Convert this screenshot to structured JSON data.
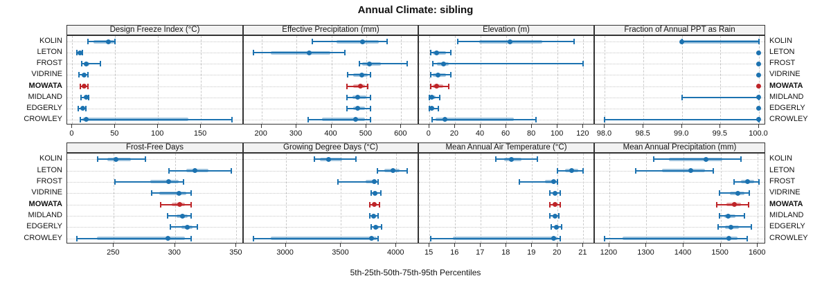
{
  "title": "Annual Climate: sibling",
  "footer_label": "5th-25th-50th-75th-95th Percentiles",
  "colors": {
    "series_blue": "#1C72B0",
    "highlight_red": "#BE2428",
    "strip_bg": "#F2F2F2",
    "panel_border": "#333333",
    "grid": "#C9C9C9"
  },
  "chart_data": {
    "type": "dot-whisker",
    "percentiles": [
      5,
      25,
      50,
      75,
      95
    ],
    "categories": [
      "KOLIN",
      "LETON",
      "FROST",
      "VIDRINE",
      "MOWATA",
      "MIDLAND",
      "EDGERLY",
      "CROWLEY"
    ],
    "highlight_category": "MOWATA",
    "legend_position": "none",
    "grid": "on",
    "panels": [
      {
        "title": "Design Freeze Index (°C)",
        "ticks": [
          0,
          50,
          100,
          150
        ],
        "tick_labels": [
          "0",
          "50",
          "100",
          "150"
        ],
        "xlim": [
          -6,
          200
        ],
        "values": {
          "KOLIN": [
            18,
            25,
            42,
            49,
            50
          ],
          "LETON": [
            5,
            7,
            9,
            11,
            12
          ],
          "FROST": [
            11,
            13,
            16,
            20,
            33
          ],
          "VIDRINE": [
            8,
            11,
            14,
            16,
            18
          ],
          "MOWATA": [
            9,
            12,
            14,
            16,
            18
          ],
          "MIDLAND": [
            10,
            13,
            16,
            17,
            19
          ],
          "EDGERLY": [
            7,
            10,
            12,
            14,
            16
          ],
          "CROWLEY": [
            9,
            12,
            16,
            135,
            186
          ]
        }
      },
      {
        "title": "Effective Precipitation (mm)",
        "ticks": [
          200,
          300,
          400,
          500,
          600
        ],
        "tick_labels": [
          "200",
          "300",
          "400",
          "500",
          "600"
        ],
        "xlim": [
          149,
          651
        ],
        "values": {
          "KOLIN": [
            345,
            415,
            490,
            535,
            560
          ],
          "LETON": [
            176,
            227,
            336,
            397,
            438
          ],
          "FROST": [
            480,
            488,
            510,
            542,
            617
          ],
          "VIDRINE": [
            446,
            462,
            488,
            505,
            513
          ],
          "MOWATA": [
            445,
            462,
            483,
            497,
            505
          ],
          "MIDLAND": [
            444,
            460,
            475,
            500,
            512
          ],
          "EDGERLY": [
            445,
            462,
            475,
            497,
            512
          ],
          "CROWLEY": [
            334,
            374,
            470,
            497,
            512
          ]
        }
      },
      {
        "title": "Elevation (m)",
        "ticks": [
          0,
          20,
          40,
          60,
          80,
          100,
          120
        ],
        "tick_labels": [
          "0",
          "20",
          "40",
          "60",
          "80",
          "100",
          "120"
        ],
        "xlim": [
          -8,
          129
        ],
        "values": {
          "KOLIN": [
            22,
            39,
            63,
            88,
            113
          ],
          "LETON": [
            1,
            3,
            6,
            13,
            17
          ],
          "FROST": [
            3,
            6,
            11,
            15,
            120
          ],
          "VIDRINE": [
            1,
            3,
            7,
            13,
            17
          ],
          "MOWATA": [
            1,
            3,
            6,
            11,
            15
          ],
          "MIDLAND": [
            0,
            1,
            2,
            5,
            8
          ],
          "EDGERLY": [
            0,
            1,
            2,
            4,
            7
          ],
          "CROWLEY": [
            2,
            5,
            12,
            66,
            83
          ]
        }
      },
      {
        "title": "Fraction of Annual PPT as Rain",
        "ticks": [
          98.0,
          98.5,
          99.0,
          99.5,
          100.0
        ],
        "tick_labels": [
          "98.0",
          "98.5",
          "99.0",
          "99.5",
          "100.0"
        ],
        "xlim": [
          97.87,
          100.09
        ],
        "values": {
          "KOLIN": [
            99.0,
            99.0,
            99.0,
            100.0,
            100.0
          ],
          "LETON": [
            100.0,
            100.0,
            100.0,
            100.0,
            100.0
          ],
          "FROST": [
            100.0,
            100.0,
            100.0,
            100.0,
            100.0
          ],
          "VIDRINE": [
            100.0,
            100.0,
            100.0,
            100.0,
            100.0
          ],
          "MOWATA": [
            100.0,
            100.0,
            100.0,
            100.0,
            100.0
          ],
          "MIDLAND": [
            99.0,
            100.0,
            100.0,
            100.0,
            100.0
          ],
          "EDGERLY": [
            100.0,
            100.0,
            100.0,
            100.0,
            100.0
          ],
          "CROWLEY": [
            98.0,
            100.0,
            100.0,
            100.0,
            100.0
          ]
        }
      },
      {
        "title": "Frost-Free Days",
        "ticks": [
          250,
          300,
          350
        ],
        "tick_labels": [
          "250",
          "300",
          "350"
        ],
        "xlim": [
          212,
          356
        ],
        "values": {
          "KOLIN": [
            237,
            245,
            252,
            264,
            276
          ],
          "LETON": [
            295,
            309,
            316,
            327,
            346
          ],
          "FROST": [
            251,
            280,
            295,
            303,
            307
          ],
          "VIDRINE": [
            281,
            287,
            303,
            309,
            313
          ],
          "MOWATA": [
            288,
            297,
            304,
            308,
            313
          ],
          "MIDLAND": [
            294,
            301,
            306,
            310,
            313
          ],
          "EDGERLY": [
            296,
            305,
            310,
            314,
            318
          ],
          "CROWLEY": [
            220,
            236,
            294,
            308,
            313
          ]
        }
      },
      {
        "title": "Growing Degree Days (°C)",
        "ticks": [
          3000,
          3500,
          4000
        ],
        "tick_labels": [
          "3000",
          "3500",
          "4000"
        ],
        "xlim": [
          2620,
          4205
        ],
        "values": {
          "KOLIN": [
            3260,
            3310,
            3385,
            3510,
            3635
          ],
          "LETON": [
            3830,
            3890,
            3970,
            4030,
            4100
          ],
          "FROST": [
            3470,
            3720,
            3800,
            3820,
            3835
          ],
          "VIDRINE": [
            3770,
            3790,
            3805,
            3830,
            3858
          ],
          "MOWATA": [
            3760,
            3785,
            3800,
            3820,
            3845
          ],
          "MIDLAND": [
            3760,
            3780,
            3795,
            3815,
            3835
          ],
          "EDGERLY": [
            3770,
            3795,
            3815,
            3840,
            3865
          ],
          "CROWLEY": [
            2710,
            2865,
            3775,
            3820,
            3835
          ]
        }
      },
      {
        "title": "Mean Annual Air Temperature (°C)",
        "ticks": [
          15,
          16,
          17,
          18,
          19,
          20,
          21
        ],
        "tick_labels": [
          "15",
          "16",
          "17",
          "18",
          "19",
          "20",
          "21"
        ],
        "xlim": [
          14.59,
          21.45
        ],
        "values": {
          "KOLIN": [
            17.6,
            17.9,
            18.2,
            18.6,
            19.2
          ],
          "LETON": [
            20.0,
            20.3,
            20.55,
            20.8,
            21.0
          ],
          "FROST": [
            18.5,
            19.5,
            19.85,
            19.95,
            20.0
          ],
          "VIDRINE": [
            19.7,
            19.8,
            19.9,
            20.0,
            20.1
          ],
          "MOWATA": [
            19.7,
            19.8,
            19.9,
            20.0,
            20.1
          ],
          "MIDLAND": [
            19.7,
            19.8,
            19.9,
            19.95,
            20.05
          ],
          "EDGERLY": [
            19.75,
            19.85,
            19.95,
            20.05,
            20.15
          ],
          "CROWLEY": [
            15.05,
            15.9,
            19.85,
            20.0,
            20.1
          ]
        }
      },
      {
        "title": "Mean Annual Precipitation (mm)",
        "ticks": [
          1200,
          1300,
          1400,
          1500,
          1600
        ],
        "tick_labels": [
          "1200",
          "1300",
          "1400",
          "1500",
          "1600"
        ],
        "xlim": [
          1161,
          1622
        ],
        "values": {
          "KOLIN": [
            1320,
            1360,
            1460,
            1505,
            1555
          ],
          "LETON": [
            1271,
            1342,
            1420,
            1458,
            1481
          ],
          "FROST": [
            1537,
            1555,
            1573,
            1590,
            1603
          ],
          "VIDRINE": [
            1497,
            1525,
            1547,
            1565,
            1578
          ],
          "MOWATA": [
            1490,
            1515,
            1537,
            1555,
            1575
          ],
          "MIDLAND": [
            1497,
            1510,
            1521,
            1540,
            1565
          ],
          "EDGERLY": [
            1494,
            1512,
            1528,
            1550,
            1583
          ],
          "CROWLEY": [
            1188,
            1235,
            1522,
            1545,
            1572
          ]
        }
      }
    ]
  }
}
